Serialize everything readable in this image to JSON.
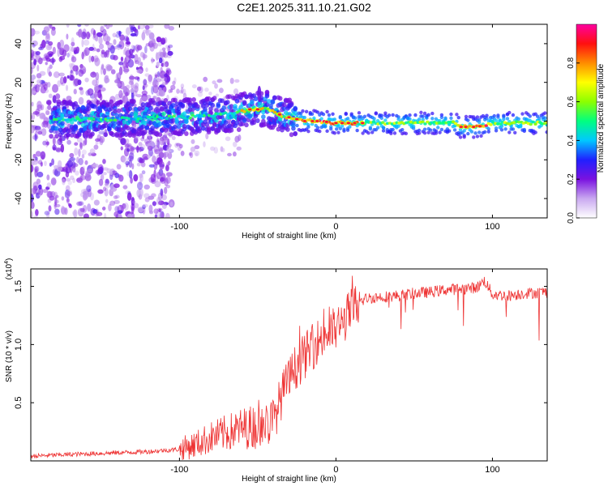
{
  "title": "C2E1.2025.311.10.21.G02",
  "chart_data": [
    {
      "type": "heatmap",
      "xlabel": "Height of straight line (km)",
      "ylabel": "Frequency (Hz)",
      "xlim": [
        -195,
        135
      ],
      "ylim": [
        -50,
        50
      ],
      "xticks": [
        -100,
        0,
        100
      ],
      "yticks": [
        -40,
        -20,
        0,
        20,
        40
      ],
      "colorbar": {
        "label": "Normalized spectral amplitude",
        "range": [
          0,
          1
        ],
        "ticks": [
          "0.0",
          "0.2",
          "0.4",
          "0.6",
          "0.8"
        ],
        "tick_values": [
          0.0,
          0.2,
          0.4,
          0.6,
          0.8
        ],
        "colors": [
          "#ffffff",
          "#c9a8f0",
          "#7a12e0",
          "#2020ff",
          "#00c8ff",
          "#00ff80",
          "#8cff00",
          "#ffff00",
          "#ff8c00",
          "#ff1010",
          "#ff00a0"
        ]
      },
      "ridge": {
        "description": "dominant frequency track vs height",
        "x": [
          -180,
          -160,
          -140,
          -120,
          -100,
          -80,
          -65,
          -55,
          -50,
          -45,
          -40,
          -35,
          -30,
          -25,
          -20,
          -10,
          0,
          10,
          20,
          40,
          60,
          75,
          80,
          90,
          100,
          110,
          120,
          135
        ],
        "y": [
          1,
          1,
          1,
          2,
          2,
          3,
          4,
          6,
          6,
          7,
          5,
          3,
          2,
          1,
          0,
          0,
          -1,
          -1,
          -1,
          -1,
          -1,
          -1,
          -3,
          -3,
          -1,
          -1,
          -1,
          -1
        ]
      }
    },
    {
      "type": "line",
      "xlabel": "Height of straight line (km)",
      "ylabel": "SNR (10 * v/v)",
      "y_multiplier": "(x10",
      "y_multiplier_exp": "4",
      "y_multiplier_close": ")",
      "xlim": [
        -195,
        135
      ],
      "ylim": [
        0,
        1.65
      ],
      "xticks": [
        -100,
        0,
        100
      ],
      "yticks": [
        0.5,
        1.0,
        1.5
      ],
      "ytick_labels": [
        "0.5",
        "1.0",
        "1.5"
      ],
      "color": "#ee3333",
      "x": [
        -195,
        -180,
        -160,
        -140,
        -120,
        -100,
        -90,
        -80,
        -70,
        -60,
        -50,
        -40,
        -35,
        -30,
        -25,
        -20,
        -15,
        -10,
        -5,
        0,
        5,
        10,
        15,
        20,
        30,
        40,
        50,
        60,
        70,
        80,
        90,
        95,
        100,
        110,
        120,
        135
      ],
      "values": [
        0.04,
        0.05,
        0.06,
        0.07,
        0.08,
        0.1,
        0.14,
        0.2,
        0.24,
        0.28,
        0.3,
        0.34,
        0.55,
        0.7,
        0.82,
        0.9,
        0.98,
        1.05,
        1.1,
        1.13,
        1.2,
        1.3,
        1.36,
        1.4,
        1.41,
        1.42,
        1.44,
        1.45,
        1.47,
        1.48,
        1.49,
        1.55,
        1.43,
        1.42,
        1.44,
        1.45
      ]
    }
  ]
}
